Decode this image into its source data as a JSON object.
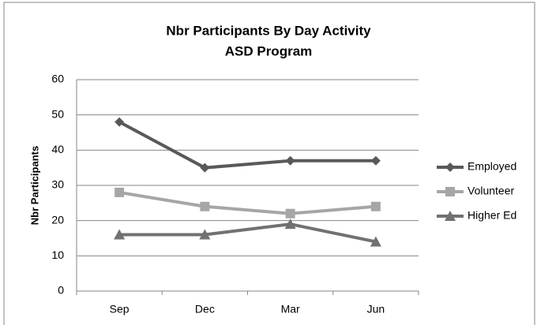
{
  "chart_data": {
    "type": "line",
    "title": "Nbr Participants By Day Activity",
    "subtitle": "ASD Program",
    "y_label": "Nbr Participants",
    "categories": [
      "Sep",
      "Dec",
      "Mar",
      "Jun"
    ],
    "series": [
      {
        "name": "Employed",
        "color": "#595959",
        "marker": "diamond",
        "values": [
          48,
          35,
          37,
          37
        ]
      },
      {
        "name": "Volunteer",
        "color": "#a6a6a6",
        "marker": "square",
        "values": [
          28,
          24,
          22,
          24
        ]
      },
      {
        "name": "Higher Ed",
        "color": "#717171",
        "marker": "triangle",
        "values": [
          16,
          16,
          19,
          14
        ]
      }
    ],
    "ylim": [
      0,
      60
    ],
    "yticks": [
      0,
      10,
      20,
      30,
      40,
      50,
      60
    ],
    "grid": true,
    "legend": "right"
  }
}
